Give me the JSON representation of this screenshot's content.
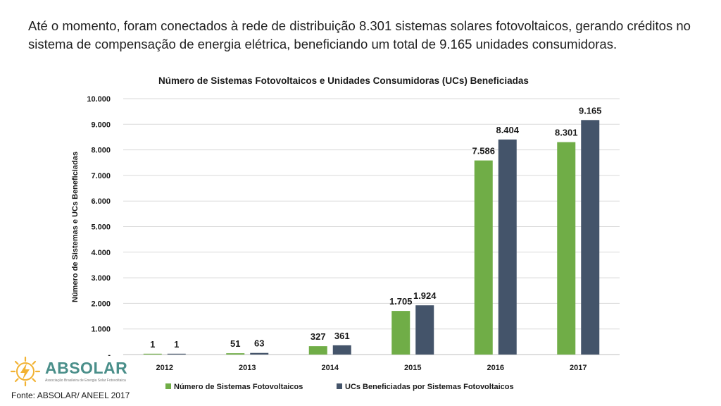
{
  "intro": {
    "line1": "Até o momento, foram conectados à rede de distribuição 8.301 sistemas solares fotovoltaicos, gerando créditos no",
    "line2": "sistema de compensação de energia elétrica, beneficiando um total de 9.165 unidades consumidoras."
  },
  "logo": {
    "name": "ABSOLAR",
    "subtitle": "Associação Brasileira de Energia Solar Fotovoltaica",
    "icon": "lightning-sun-icon"
  },
  "source": "Fonte: ABSOLAR/ ANEEL 2017",
  "colors": {
    "series1": "#70ad47",
    "series2": "#44546a",
    "grid": "#d9d9d9",
    "logo": "#4a8f8a",
    "logo_accent": "#f2b233"
  },
  "chart_data": {
    "type": "bar",
    "title": "Número de Sistemas Fotovoltaicos e Unidades Consumidoras (UCs) Beneficiadas",
    "xlabel": "",
    "ylabel": "Número de Sistemas e UCs Beneficiadas",
    "ylim": [
      0,
      10000
    ],
    "yticks": [
      {
        "value": 0,
        "label": "-"
      },
      {
        "value": 1000,
        "label": "1.000"
      },
      {
        "value": 2000,
        "label": "2.000"
      },
      {
        "value": 3000,
        "label": "3.000"
      },
      {
        "value": 4000,
        "label": "4.000"
      },
      {
        "value": 5000,
        "label": "5.000"
      },
      {
        "value": 6000,
        "label": "6.000"
      },
      {
        "value": 7000,
        "label": "7.000"
      },
      {
        "value": 8000,
        "label": "8.000"
      },
      {
        "value": 9000,
        "label": "9.000"
      },
      {
        "value": 10000,
        "label": "10.000"
      }
    ],
    "categories": [
      "2012",
      "2013",
      "2014",
      "2015",
      "2016",
      "2017"
    ],
    "grid": true,
    "legend_position": "bottom",
    "series": [
      {
        "name": "Número de Sistemas Fotovoltaicos",
        "values": [
          1,
          51,
          327,
          1705,
          7586,
          8301
        ],
        "labels": [
          "1",
          "51",
          "327",
          "1.705",
          "7.586",
          "8.301"
        ]
      },
      {
        "name": "UCs Beneficiadas por Sistemas Fotovoltaicos",
        "values": [
          1,
          63,
          361,
          1924,
          8404,
          9165
        ],
        "labels": [
          "1",
          "63",
          "361",
          "1.924",
          "8.404",
          "9.165"
        ]
      }
    ]
  }
}
